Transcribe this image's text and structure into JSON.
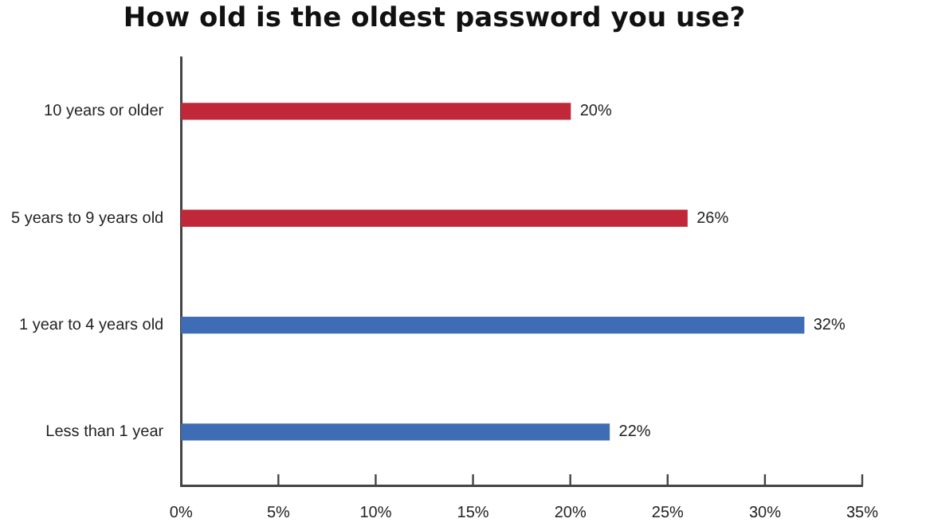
{
  "chart_data": {
    "type": "bar",
    "orientation": "horizontal",
    "title": "How old is the oldest password you use?",
    "categories": [
      "10 years or older",
      "5 years to 9 years old",
      "1 year to 4 years old",
      "Less than 1 year"
    ],
    "values": [
      20,
      26,
      32,
      22
    ],
    "colors": [
      "#c0283a",
      "#c0283a",
      "#3f6db5",
      "#3f6db5"
    ],
    "value_labels": [
      "20%",
      "26%",
      "32%",
      "22%"
    ],
    "xlim": [
      0,
      35
    ],
    "xticks": [
      {
        "value": 0,
        "label": "0%"
      },
      {
        "value": 5,
        "label": "5%"
      },
      {
        "value": 10,
        "label": "10%"
      },
      {
        "value": 15,
        "label": "15%"
      },
      {
        "value": 20,
        "label": "20%"
      },
      {
        "value": 25,
        "label": "25%"
      },
      {
        "value": 30,
        "label": "30%"
      },
      {
        "value": 35,
        "label": "35%"
      }
    ],
    "grid": false
  }
}
